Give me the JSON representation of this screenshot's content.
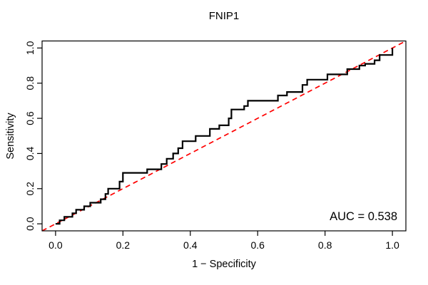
{
  "figure": {
    "background": "#ffffff",
    "axis_color": "#000000",
    "text_color": "#000000"
  },
  "chart_data": {
    "type": "line",
    "subtype": "roc-step-curve",
    "title": "FNIP1",
    "xlabel": "1 − Specificity",
    "ylabel": "Sensitivity",
    "annotation": "AUC = 0.538",
    "auc": 0.538,
    "xlim": [
      -0.04,
      1.04
    ],
    "ylim": [
      -0.04,
      1.04
    ],
    "x_ticks": [
      0,
      0.2,
      0.4,
      0.6,
      0.8,
      1.0
    ],
    "x_tick_labels": [
      "0.0",
      "0.2",
      "0.4",
      "0.6",
      "0.8",
      "1.0"
    ],
    "y_ticks": [
      0,
      0.2,
      0.4,
      0.6,
      0.8,
      1.0
    ],
    "y_tick_labels": [
      "0.0",
      "0.2",
      "0.4",
      "0.6",
      "0.8",
      "1.0"
    ],
    "grid": false,
    "legend": "none",
    "series": [
      {
        "name": "ROC curve",
        "style": "step",
        "color": "#000000",
        "line_width": 2.2,
        "points": [
          [
            0.0,
            0.0
          ],
          [
            0.012,
            0.02
          ],
          [
            0.026,
            0.04
          ],
          [
            0.05,
            0.06
          ],
          [
            0.061,
            0.08
          ],
          [
            0.085,
            0.1
          ],
          [
            0.103,
            0.12
          ],
          [
            0.134,
            0.14
          ],
          [
            0.148,
            0.17
          ],
          [
            0.156,
            0.2
          ],
          [
            0.19,
            0.24
          ],
          [
            0.2,
            0.29
          ],
          [
            0.272,
            0.31
          ],
          [
            0.314,
            0.34
          ],
          [
            0.33,
            0.37
          ],
          [
            0.349,
            0.4
          ],
          [
            0.364,
            0.43
          ],
          [
            0.377,
            0.47
          ],
          [
            0.416,
            0.5
          ],
          [
            0.458,
            0.54
          ],
          [
            0.486,
            0.56
          ],
          [
            0.514,
            0.6
          ],
          [
            0.522,
            0.65
          ],
          [
            0.56,
            0.67
          ],
          [
            0.571,
            0.7
          ],
          [
            0.66,
            0.73
          ],
          [
            0.687,
            0.75
          ],
          [
            0.733,
            0.79
          ],
          [
            0.747,
            0.82
          ],
          [
            0.807,
            0.85
          ],
          [
            0.866,
            0.88
          ],
          [
            0.902,
            0.9
          ],
          [
            0.919,
            0.91
          ],
          [
            0.947,
            0.93
          ],
          [
            0.962,
            0.96
          ],
          [
            1.0,
            1.0
          ]
        ]
      },
      {
        "name": "chance diagonal",
        "style": "dashed",
        "color": "#ff0000",
        "line_width": 1.7,
        "points": [
          [
            -0.04,
            -0.04
          ],
          [
            1.04,
            1.04
          ]
        ]
      }
    ]
  }
}
